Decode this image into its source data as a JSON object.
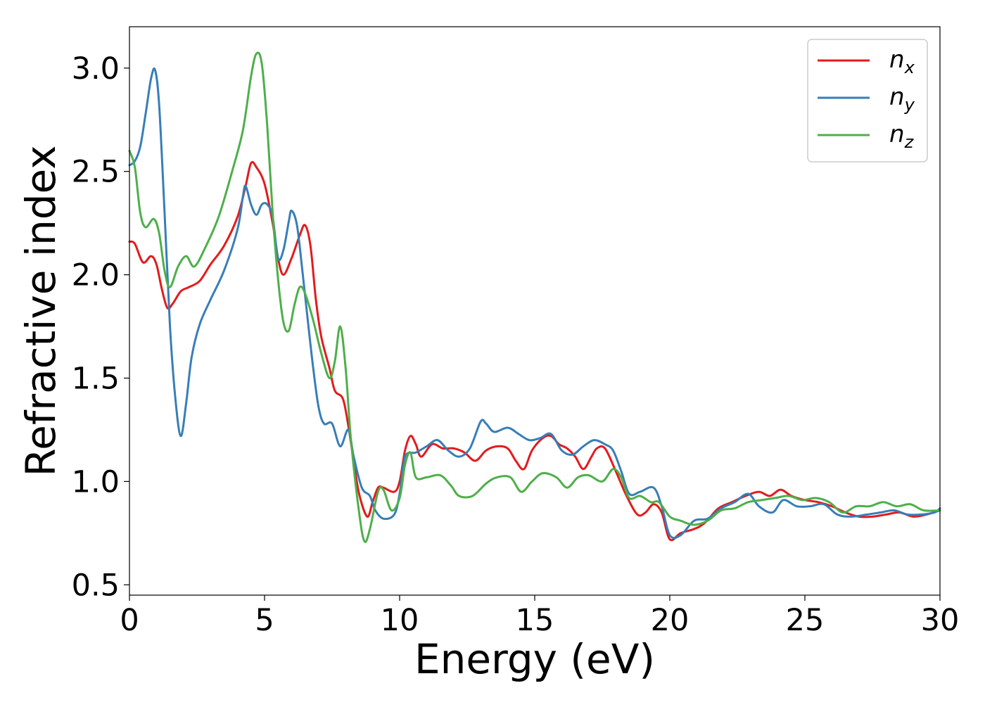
{
  "chart_data": {
    "type": "line",
    "xlabel": "Energy (eV)",
    "ylabel": "Refractive index",
    "xlim": [
      0,
      30
    ],
    "ylim": [
      0.45,
      3.2
    ],
    "x_ticks": [
      0,
      5,
      10,
      15,
      20,
      25,
      30
    ],
    "x_tick_labels": [
      "0",
      "5",
      "10",
      "15",
      "20",
      "25",
      "30"
    ],
    "y_ticks": [
      0.5,
      1.0,
      1.5,
      2.0,
      2.5,
      3.0
    ],
    "y_tick_labels": [
      "0.5",
      "1.0",
      "1.5",
      "2.0",
      "2.5",
      "3.0"
    ],
    "grid": false,
    "legend_position": "top-right",
    "series": [
      {
        "name": "n_x",
        "name_base": "n",
        "name_sub": "x",
        "color": "#e41a1c",
        "points": [
          [
            0,
            2.16
          ],
          [
            0.2,
            2.15
          ],
          [
            0.5,
            2.06
          ],
          [
            0.8,
            2.09
          ],
          [
            1.0,
            2.05
          ],
          [
            1.2,
            1.93
          ],
          [
            1.4,
            1.84
          ],
          [
            1.6,
            1.86
          ],
          [
            1.9,
            1.92
          ],
          [
            2.2,
            1.94
          ],
          [
            2.6,
            1.97
          ],
          [
            3.0,
            2.05
          ],
          [
            3.5,
            2.14
          ],
          [
            4.0,
            2.28
          ],
          [
            4.3,
            2.43
          ],
          [
            4.5,
            2.54
          ],
          [
            4.7,
            2.52
          ],
          [
            5.0,
            2.44
          ],
          [
            5.3,
            2.25
          ],
          [
            5.5,
            2.08
          ],
          [
            5.7,
            2.0
          ],
          [
            6.0,
            2.08
          ],
          [
            6.3,
            2.19
          ],
          [
            6.5,
            2.24
          ],
          [
            6.7,
            2.14
          ],
          [
            6.9,
            1.88
          ],
          [
            7.1,
            1.7
          ],
          [
            7.4,
            1.55
          ],
          [
            7.6,
            1.44
          ],
          [
            7.9,
            1.4
          ],
          [
            8.1,
            1.27
          ],
          [
            8.3,
            1.1
          ],
          [
            8.5,
            0.94
          ],
          [
            8.8,
            0.83
          ],
          [
            9.0,
            0.9
          ],
          [
            9.2,
            0.97
          ],
          [
            9.4,
            0.97
          ],
          [
            9.8,
            0.95
          ],
          [
            10.0,
            1.0
          ],
          [
            10.2,
            1.15
          ],
          [
            10.4,
            1.22
          ],
          [
            10.6,
            1.18
          ],
          [
            10.8,
            1.12
          ],
          [
            11.2,
            1.18
          ],
          [
            11.6,
            1.16
          ],
          [
            12.0,
            1.16
          ],
          [
            12.4,
            1.14
          ],
          [
            12.8,
            1.1
          ],
          [
            13.2,
            1.15
          ],
          [
            13.6,
            1.17
          ],
          [
            14.0,
            1.16
          ],
          [
            14.3,
            1.1
          ],
          [
            14.6,
            1.06
          ],
          [
            14.9,
            1.15
          ],
          [
            15.3,
            1.21
          ],
          [
            15.6,
            1.22
          ],
          [
            15.9,
            1.18
          ],
          [
            16.2,
            1.16
          ],
          [
            16.5,
            1.12
          ],
          [
            16.8,
            1.06
          ],
          [
            17.1,
            1.12
          ],
          [
            17.3,
            1.16
          ],
          [
            17.6,
            1.16
          ],
          [
            18.0,
            1.05
          ],
          [
            18.4,
            0.93
          ],
          [
            18.8,
            0.84
          ],
          [
            19.1,
            0.85
          ],
          [
            19.4,
            0.89
          ],
          [
            19.7,
            0.85
          ],
          [
            20.0,
            0.72
          ],
          [
            20.4,
            0.75
          ],
          [
            20.9,
            0.77
          ],
          [
            21.3,
            0.8
          ],
          [
            21.8,
            0.87
          ],
          [
            22.3,
            0.9
          ],
          [
            22.8,
            0.93
          ],
          [
            23.3,
            0.95
          ],
          [
            23.7,
            0.93
          ],
          [
            24.1,
            0.96
          ],
          [
            24.5,
            0.93
          ],
          [
            25.0,
            0.91
          ],
          [
            25.5,
            0.9
          ],
          [
            26.0,
            0.88
          ],
          [
            26.5,
            0.85
          ],
          [
            27.0,
            0.83
          ],
          [
            27.5,
            0.83
          ],
          [
            28.0,
            0.84
          ],
          [
            28.5,
            0.85
          ],
          [
            29.0,
            0.83
          ],
          [
            29.5,
            0.84
          ],
          [
            30.0,
            0.86
          ]
        ]
      },
      {
        "name": "n_y",
        "name_base": "n",
        "name_sub": "y",
        "color": "#377eb8",
        "points": [
          [
            0,
            2.53
          ],
          [
            0.2,
            2.55
          ],
          [
            0.4,
            2.62
          ],
          [
            0.6,
            2.78
          ],
          [
            0.8,
            2.95
          ],
          [
            0.95,
            2.99
          ],
          [
            1.1,
            2.82
          ],
          [
            1.3,
            2.3
          ],
          [
            1.5,
            1.75
          ],
          [
            1.7,
            1.4
          ],
          [
            1.9,
            1.22
          ],
          [
            2.1,
            1.38
          ],
          [
            2.3,
            1.6
          ],
          [
            2.6,
            1.76
          ],
          [
            3.0,
            1.88
          ],
          [
            3.5,
            2.02
          ],
          [
            4.0,
            2.22
          ],
          [
            4.2,
            2.38
          ],
          [
            4.3,
            2.43
          ],
          [
            4.5,
            2.34
          ],
          [
            4.7,
            2.29
          ],
          [
            4.9,
            2.34
          ],
          [
            5.1,
            2.34
          ],
          [
            5.3,
            2.28
          ],
          [
            5.5,
            2.08
          ],
          [
            5.7,
            2.12
          ],
          [
            5.9,
            2.26
          ],
          [
            6.0,
            2.31
          ],
          [
            6.2,
            2.24
          ],
          [
            6.4,
            2.02
          ],
          [
            6.6,
            1.78
          ],
          [
            6.8,
            1.55
          ],
          [
            7.0,
            1.36
          ],
          [
            7.2,
            1.28
          ],
          [
            7.5,
            1.28
          ],
          [
            7.8,
            1.17
          ],
          [
            8.1,
            1.25
          ],
          [
            8.3,
            1.12
          ],
          [
            8.6,
            0.97
          ],
          [
            8.9,
            0.93
          ],
          [
            9.1,
            0.86
          ],
          [
            9.4,
            0.82
          ],
          [
            9.8,
            0.84
          ],
          [
            10.0,
            0.94
          ],
          [
            10.2,
            1.12
          ],
          [
            10.6,
            1.14
          ],
          [
            11.0,
            1.17
          ],
          [
            11.4,
            1.2
          ],
          [
            11.8,
            1.15
          ],
          [
            12.2,
            1.12
          ],
          [
            12.6,
            1.16
          ],
          [
            13.0,
            1.29
          ],
          [
            13.2,
            1.28
          ],
          [
            13.5,
            1.24
          ],
          [
            14.0,
            1.26
          ],
          [
            14.4,
            1.23
          ],
          [
            14.8,
            1.2
          ],
          [
            15.2,
            1.21
          ],
          [
            15.6,
            1.23
          ],
          [
            16.0,
            1.15
          ],
          [
            16.4,
            1.13
          ],
          [
            16.8,
            1.17
          ],
          [
            17.2,
            1.2
          ],
          [
            17.6,
            1.18
          ],
          [
            17.9,
            1.15
          ],
          [
            18.2,
            1.05
          ],
          [
            18.5,
            0.94
          ],
          [
            18.9,
            0.95
          ],
          [
            19.4,
            0.97
          ],
          [
            19.7,
            0.88
          ],
          [
            20.0,
            0.74
          ],
          [
            20.4,
            0.74
          ],
          [
            20.9,
            0.81
          ],
          [
            21.4,
            0.82
          ],
          [
            21.9,
            0.87
          ],
          [
            22.4,
            0.9
          ],
          [
            22.9,
            0.94
          ],
          [
            23.3,
            0.88
          ],
          [
            23.8,
            0.85
          ],
          [
            24.2,
            0.91
          ],
          [
            24.7,
            0.88
          ],
          [
            25.2,
            0.88
          ],
          [
            25.7,
            0.89
          ],
          [
            26.2,
            0.84
          ],
          [
            26.7,
            0.83
          ],
          [
            27.3,
            0.84
          ],
          [
            27.8,
            0.85
          ],
          [
            28.3,
            0.86
          ],
          [
            28.8,
            0.84
          ],
          [
            29.3,
            0.84
          ],
          [
            29.8,
            0.85
          ],
          [
            30.0,
            0.87
          ]
        ]
      },
      {
        "name": "n_z",
        "name_base": "n",
        "name_sub": "z",
        "color": "#4daf4a",
        "points": [
          [
            0,
            2.6
          ],
          [
            0.2,
            2.52
          ],
          [
            0.4,
            2.3
          ],
          [
            0.6,
            2.23
          ],
          [
            0.9,
            2.27
          ],
          [
            1.1,
            2.2
          ],
          [
            1.3,
            2.02
          ],
          [
            1.5,
            1.94
          ],
          [
            1.8,
            2.04
          ],
          [
            2.1,
            2.09
          ],
          [
            2.4,
            2.04
          ],
          [
            2.8,
            2.13
          ],
          [
            3.3,
            2.28
          ],
          [
            3.8,
            2.5
          ],
          [
            4.2,
            2.7
          ],
          [
            4.5,
            2.96
          ],
          [
            4.7,
            3.07
          ],
          [
            4.9,
            3.02
          ],
          [
            5.1,
            2.72
          ],
          [
            5.3,
            2.3
          ],
          [
            5.5,
            1.98
          ],
          [
            5.7,
            1.77
          ],
          [
            5.9,
            1.73
          ],
          [
            6.1,
            1.85
          ],
          [
            6.3,
            1.94
          ],
          [
            6.5,
            1.91
          ],
          [
            6.8,
            1.78
          ],
          [
            7.1,
            1.62
          ],
          [
            7.4,
            1.5
          ],
          [
            7.6,
            1.58
          ],
          [
            7.8,
            1.75
          ],
          [
            8.0,
            1.55
          ],
          [
            8.2,
            1.2
          ],
          [
            8.5,
            0.85
          ],
          [
            8.7,
            0.71
          ],
          [
            8.9,
            0.77
          ],
          [
            9.2,
            0.95
          ],
          [
            9.4,
            0.96
          ],
          [
            9.7,
            0.86
          ],
          [
            10.0,
            0.92
          ],
          [
            10.2,
            1.08
          ],
          [
            10.4,
            1.14
          ],
          [
            10.6,
            1.02
          ],
          [
            11.0,
            1.02
          ],
          [
            11.5,
            1.03
          ],
          [
            11.9,
            0.98
          ],
          [
            12.2,
            0.93
          ],
          [
            12.7,
            0.93
          ],
          [
            13.2,
            0.99
          ],
          [
            13.6,
            1.02
          ],
          [
            14.1,
            1.02
          ],
          [
            14.5,
            0.95
          ],
          [
            14.9,
            1.0
          ],
          [
            15.3,
            1.04
          ],
          [
            15.8,
            1.02
          ],
          [
            16.2,
            0.97
          ],
          [
            16.6,
            1.02
          ],
          [
            17.0,
            1.03
          ],
          [
            17.5,
            1.0
          ],
          [
            17.9,
            1.06
          ],
          [
            18.2,
            1.02
          ],
          [
            18.5,
            0.92
          ],
          [
            18.9,
            0.93
          ],
          [
            19.3,
            0.9
          ],
          [
            19.6,
            0.9
          ],
          [
            20.0,
            0.83
          ],
          [
            20.4,
            0.81
          ],
          [
            20.9,
            0.79
          ],
          [
            21.4,
            0.81
          ],
          [
            21.9,
            0.86
          ],
          [
            22.4,
            0.87
          ],
          [
            22.9,
            0.9
          ],
          [
            23.4,
            0.91
          ],
          [
            23.9,
            0.92
          ],
          [
            24.4,
            0.93
          ],
          [
            24.9,
            0.91
          ],
          [
            25.4,
            0.92
          ],
          [
            25.9,
            0.9
          ],
          [
            26.4,
            0.85
          ],
          [
            26.9,
            0.88
          ],
          [
            27.4,
            0.88
          ],
          [
            27.9,
            0.9
          ],
          [
            28.4,
            0.88
          ],
          [
            28.9,
            0.89
          ],
          [
            29.4,
            0.86
          ],
          [
            30.0,
            0.86
          ]
        ]
      }
    ]
  }
}
